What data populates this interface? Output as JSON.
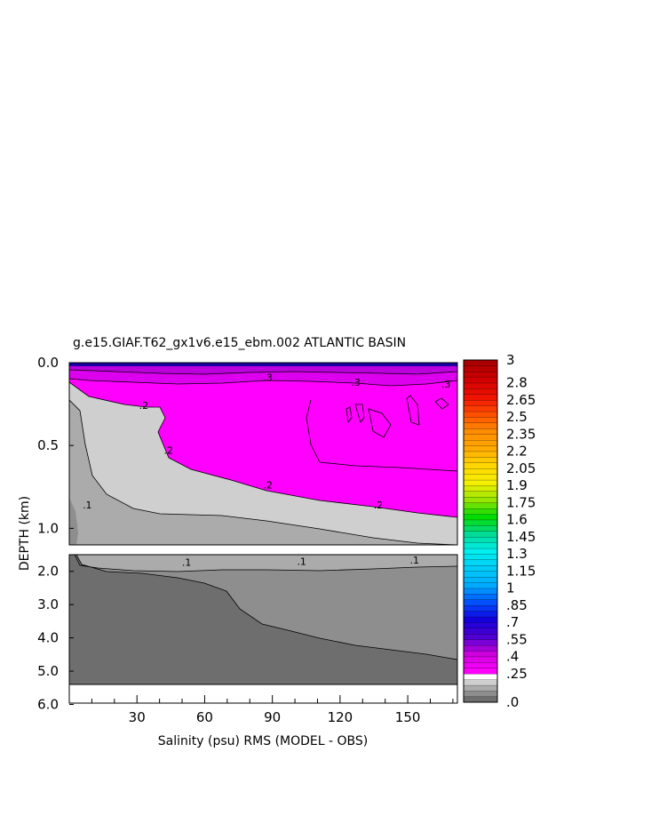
{
  "chart_data": {
    "type": "heatmap",
    "title": "g.e15.GIAF.T62_gx1v6.e15_ebm.002 ATLANTIC BASIN",
    "xlabel": "Salinity (psu) RMS (MODEL - OBS)",
    "ylabel": "DEPTH (km)",
    "xlim": [
      0,
      172
    ],
    "x_ticks": [
      "30",
      "60",
      "90",
      "120",
      "150"
    ],
    "upper_panel": {
      "ylim": [
        0.0,
        1.1
      ],
      "y_ticks": [
        "0.0",
        "0.5",
        "1.0"
      ]
    },
    "lower_panel": {
      "ylim": [
        1.5,
        5.4
      ],
      "y_ticks": [
        "2.0",
        "3.0",
        "4.0",
        "5.0",
        "6.0"
      ]
    },
    "contour_labels": [
      {
        "text": ".2",
        "panel": "upper",
        "x": 33,
        "y": 0.28
      },
      {
        "text": ".2",
        "panel": "upper",
        "x": 44,
        "y": 0.55
      },
      {
        "text": ".2",
        "panel": "upper",
        "x": 88,
        "y": 0.76
      },
      {
        "text": ".2",
        "panel": "upper",
        "x": 137,
        "y": 0.88
      },
      {
        "text": ".1",
        "panel": "upper",
        "x": 8,
        "y": 0.88
      },
      {
        "text": ".3",
        "panel": "upper",
        "x": 88,
        "y": 0.11
      },
      {
        "text": ".3",
        "panel": "upper",
        "x": 127,
        "y": 0.14
      },
      {
        "text": ".3",
        "panel": "upper",
        "x": 167,
        "y": 0.15
      },
      {
        "text": ".1",
        "panel": "lower",
        "x": 52,
        "y": 1.83
      },
      {
        "text": ".1",
        "panel": "lower",
        "x": 103,
        "y": 1.81
      },
      {
        "text": ".1",
        "panel": "lower",
        "x": 153,
        "y": 1.77
      }
    ],
    "colorbar": {
      "tick_labels": [
        "3",
        "2.8",
        "2.65",
        "2.5",
        "2.35",
        "2.2",
        "2.05",
        "1.9",
        "1.75",
        "1.6",
        "1.45",
        "1.3",
        "1.15",
        "1",
        ".85",
        ".7",
        ".55",
        ".4",
        ".25",
        ".0"
      ],
      "min": 0,
      "max": 3,
      "step": 0.05
    },
    "colors": {
      "level_0_05": "#6e6e6e",
      "level_0_1": "#8e8e8e",
      "level_0_15": "#ababab",
      "level_0_2": "#cfcfcf",
      "level_0_25": "#ff00ff",
      "level_0_3": "#dd00ee",
      "deep_blue": "#1a00a0"
    }
  }
}
